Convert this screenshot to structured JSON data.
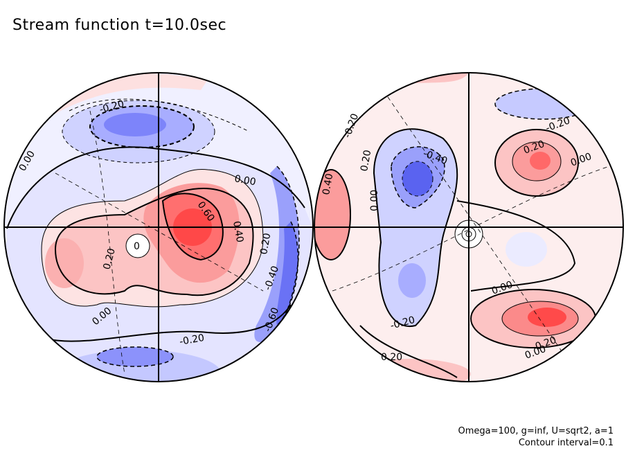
{
  "title": "Stream function t=10.0sec",
  "params": {
    "line1": "Omega=100, g=inf, U=sqrt2, a=1",
    "line2": "Contour interval=0.1"
  },
  "colors": {
    "positive": "#ff4444",
    "negative": "#5a63f0",
    "zero": "#ffffff"
  },
  "left_hemisphere": {
    "labels": [
      "-0.20",
      "0.00",
      "0.00",
      "0.60",
      "0.40",
      "0.20",
      "0.20",
      "0",
      "-0.40",
      "-0.60",
      "0.00",
      "-0.20"
    ]
  },
  "right_hemisphere": {
    "labels": [
      "-0.20",
      "0.20",
      "0.00",
      "-0.40",
      "0.20",
      "0.00",
      "0.40",
      "-0.20",
      "0.00",
      "0.20",
      "0.00",
      "-0.20",
      "0.20"
    ]
  }
}
